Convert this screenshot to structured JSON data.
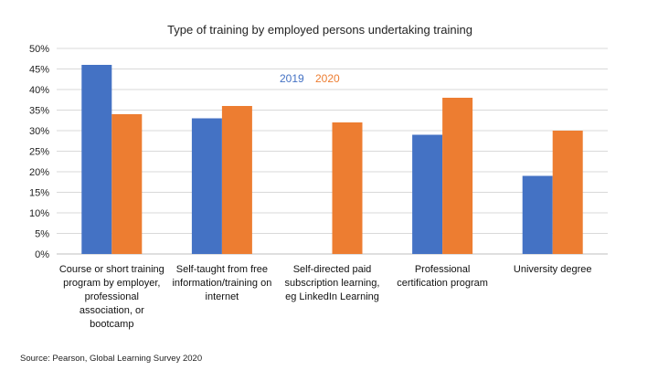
{
  "chart_data": {
    "type": "bar",
    "title": "Type of training by employed persons undertaking training",
    "xlabel": "",
    "ylabel": "",
    "ylim": [
      0,
      50
    ],
    "yticks": [
      "0%",
      "5%",
      "10%",
      "15%",
      "20%",
      "25%",
      "30%",
      "35%",
      "40%",
      "45%",
      "50%"
    ],
    "grid": true,
    "legend_position": "top-center",
    "categories": [
      "Course or short training program by employer, professional association, or bootcamp",
      "Self-taught from free information/training on internet",
      "Self-directed paid subscription learning, eg LinkedIn Learning",
      "Professional certification program",
      "University degree"
    ],
    "category_lines": [
      [
        "Course or short training",
        "program by employer,",
        "professional",
        "association, or",
        "bootcamp"
      ],
      [
        "Self-taught from free",
        "information/training on",
        "internet"
      ],
      [
        "Self-directed paid",
        "subscription learning,",
        "eg LinkedIn Learning"
      ],
      [
        "Professional",
        "certification program"
      ],
      [
        "University degree"
      ]
    ],
    "series": [
      {
        "name": "2019",
        "color": "#4472C4",
        "values": [
          46,
          33,
          null,
          29,
          19
        ]
      },
      {
        "name": "2020",
        "color": "#ED7D31",
        "values": [
          34,
          36,
          32,
          38,
          30
        ]
      }
    ]
  },
  "source": "Source: Pearson, Global Learning Survey 2020"
}
